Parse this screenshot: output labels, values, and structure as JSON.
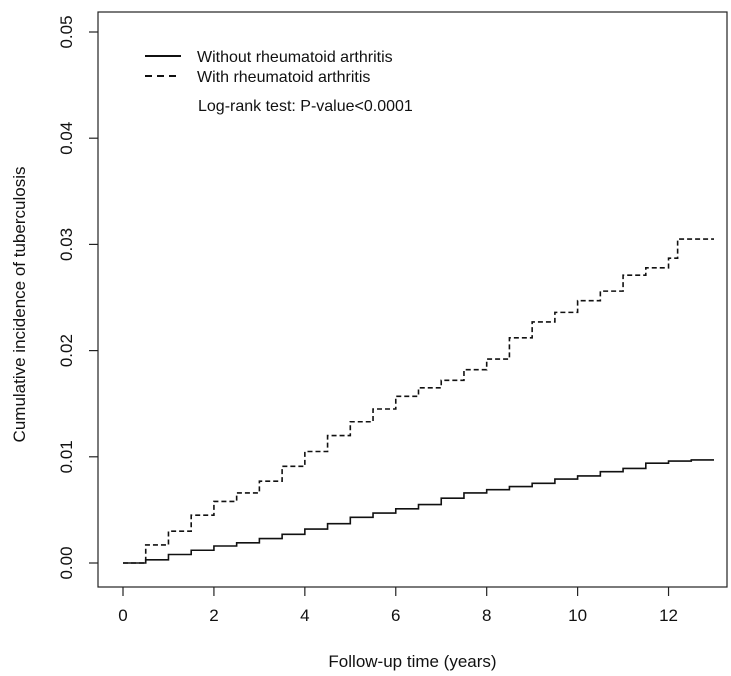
{
  "chart_data": {
    "type": "line",
    "xlabel": "Follow-up time (years)",
    "ylabel": "Cumulative incidence of tuberculosis",
    "xlim": [
      0,
      13
    ],
    "ylim": [
      0,
      0.05
    ],
    "x_ticks": [
      0,
      2,
      4,
      6,
      8,
      10,
      12
    ],
    "x_tick_labels": [
      "0",
      "2",
      "4",
      "6",
      "8",
      "10",
      "12"
    ],
    "y_ticks": [
      0,
      0.01,
      0.02,
      0.03,
      0.04,
      0.05
    ],
    "y_tick_labels": [
      "0.00",
      "0.01",
      "0.02",
      "0.03",
      "0.04",
      "0.05"
    ],
    "grid": false,
    "legend_position": "top-left",
    "annotation": "Log-rank test: P-value<0.0001",
    "series": [
      {
        "name": "Without rheumatoid arthritis",
        "line_style": "solid",
        "color": "#111111",
        "x": [
          0,
          0.5,
          1,
          1.5,
          2,
          2.5,
          3,
          3.5,
          4,
          4.5,
          5,
          5.5,
          6,
          6.5,
          7,
          7.5,
          8,
          8.5,
          9,
          9.5,
          10,
          10.5,
          11,
          11.5,
          12,
          12.5,
          13
        ],
        "y": [
          0,
          0.0003,
          0.0008,
          0.0012,
          0.0016,
          0.0019,
          0.0023,
          0.0027,
          0.0032,
          0.0037,
          0.0043,
          0.0047,
          0.0051,
          0.0055,
          0.0061,
          0.0066,
          0.0069,
          0.0072,
          0.0075,
          0.0079,
          0.0082,
          0.0086,
          0.0089,
          0.0094,
          0.0096,
          0.0097,
          0.0097
        ]
      },
      {
        "name": "With rheumatoid arthritis",
        "line_style": "dashed",
        "color": "#111111",
        "x": [
          0,
          0.5,
          1,
          1.5,
          2,
          2.5,
          3,
          3.5,
          4,
          4.5,
          5,
          5.5,
          6,
          6.5,
          7,
          7.5,
          8,
          8.5,
          9,
          9.5,
          10,
          10.5,
          11,
          11.5,
          12,
          12.2,
          12.5,
          13
        ],
        "y": [
          0,
          0.0017,
          0.003,
          0.0045,
          0.0058,
          0.0066,
          0.0077,
          0.0091,
          0.0105,
          0.012,
          0.0133,
          0.0145,
          0.0157,
          0.0165,
          0.0172,
          0.0182,
          0.0192,
          0.0212,
          0.0227,
          0.0236,
          0.0247,
          0.0256,
          0.0271,
          0.0278,
          0.0287,
          0.0305,
          0.0305,
          0.0305
        ]
      }
    ]
  }
}
